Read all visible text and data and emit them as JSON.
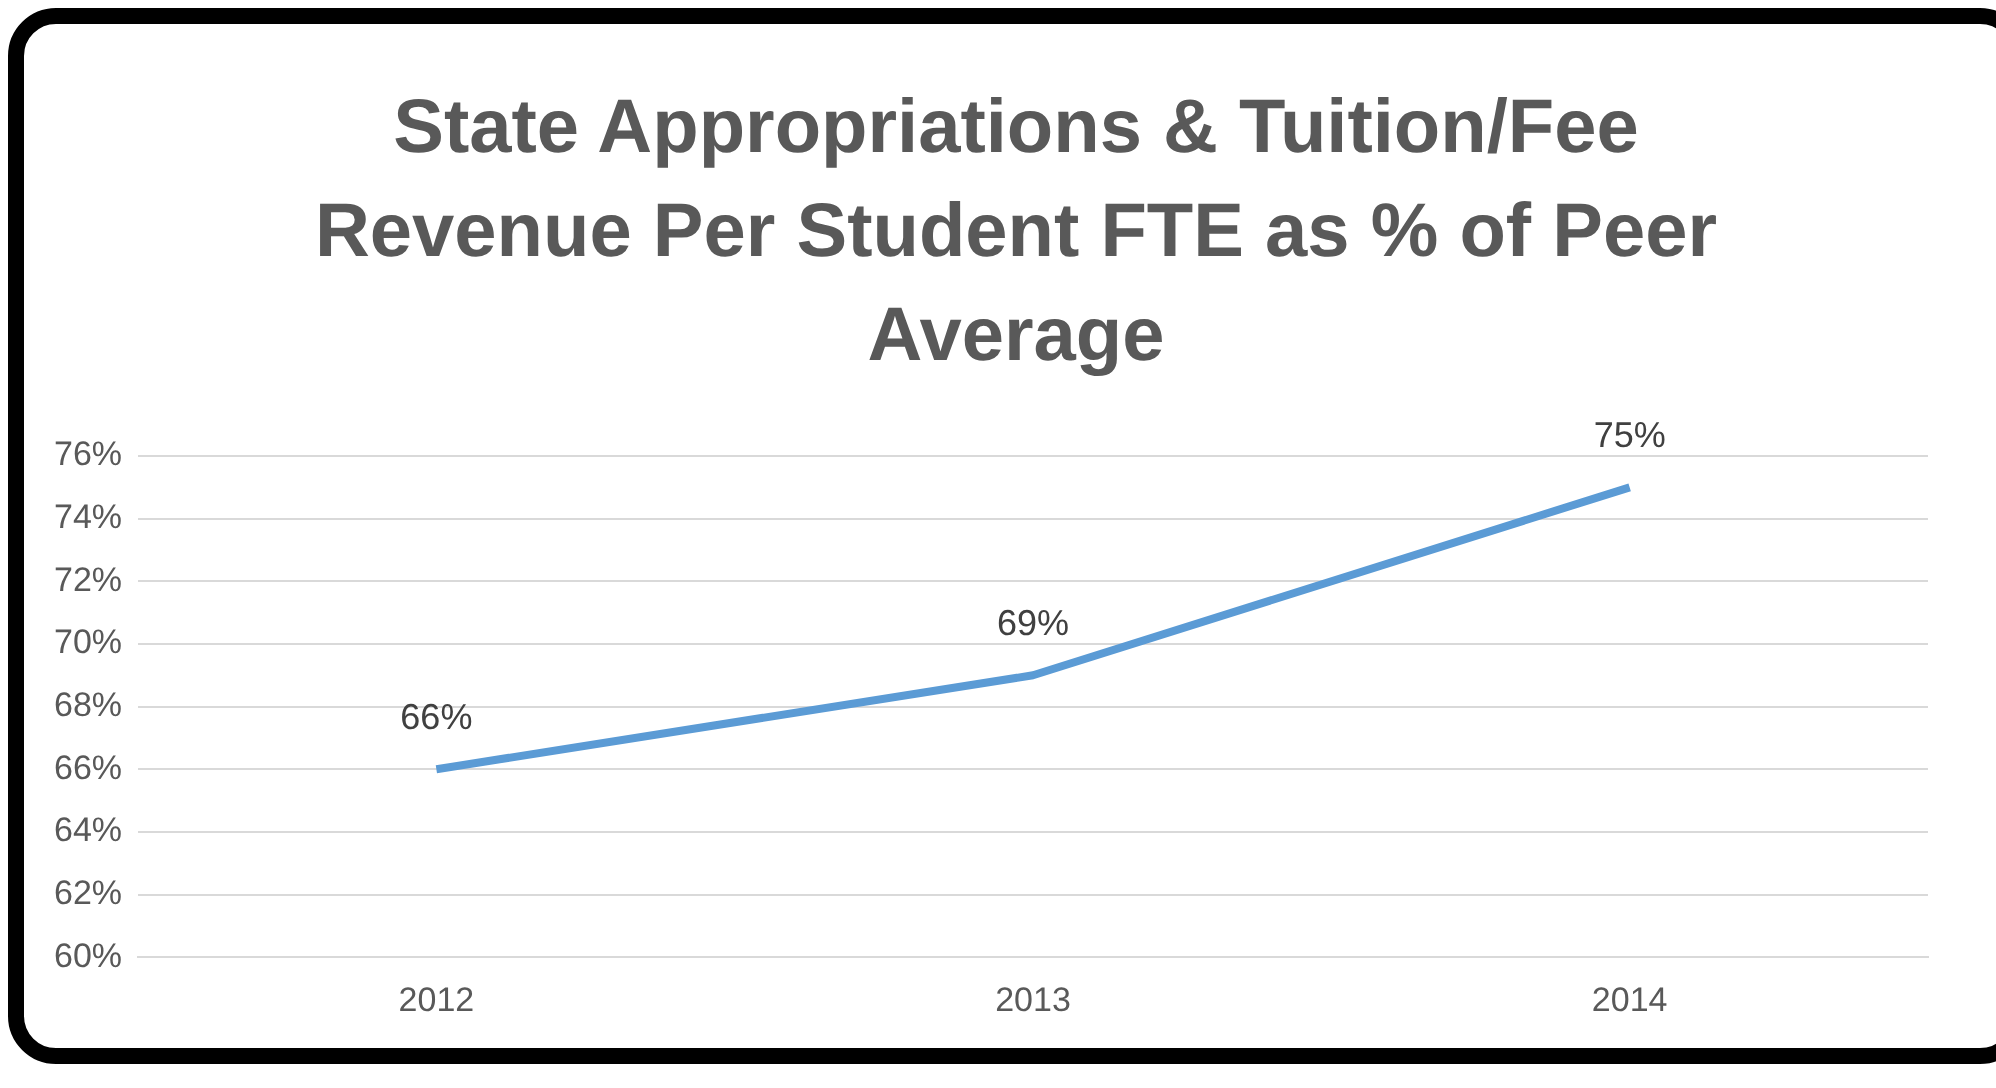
{
  "chart_data": {
    "type": "line",
    "title": "State Appropriations & Tuition/Fee Revenue Per Student FTE as % of Peer Average",
    "categories": [
      "2012",
      "2013",
      "2014"
    ],
    "series": [
      {
        "color": "#5b9bd5",
        "values": [
          66,
          69,
          75
        ],
        "value_labels": [
          "66%",
          "69%",
          "75%"
        ]
      }
    ],
    "ylim": [
      60,
      76
    ],
    "yticks": [
      {
        "value": 60,
        "label": "60%"
      },
      {
        "value": 62,
        "label": "62%"
      },
      {
        "value": 64,
        "label": "64%"
      },
      {
        "value": 66,
        "label": "66%"
      },
      {
        "value": 68,
        "label": "68%"
      },
      {
        "value": 70,
        "label": "70%"
      },
      {
        "value": 72,
        "label": "72%"
      },
      {
        "value": 74,
        "label": "74%"
      },
      {
        "value": 76,
        "label": "76%"
      }
    ],
    "grid": "y",
    "legend": false,
    "marker": "none",
    "line_style": "solid"
  }
}
